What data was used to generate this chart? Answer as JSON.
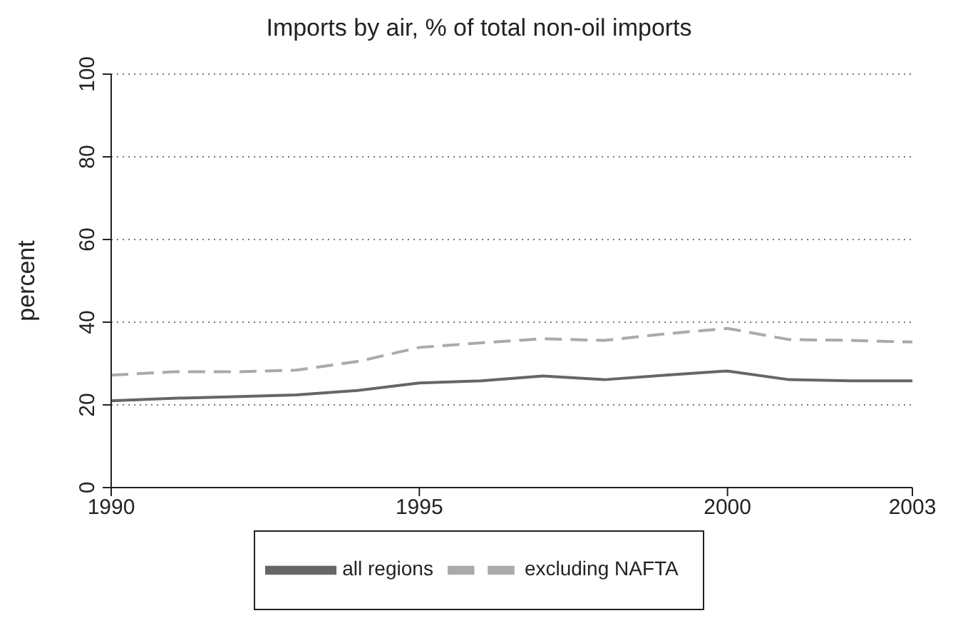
{
  "chart_data": {
    "type": "line",
    "title": "Imports by air, % of total non-oil imports",
    "ylabel": "percent",
    "x": [
      1990,
      1991,
      1992,
      1993,
      1994,
      1995,
      1996,
      1997,
      1998,
      1999,
      2000,
      2001,
      2002,
      2003
    ],
    "series": [
      {
        "name": "all regions",
        "color": "#666666",
        "line_style": "solid",
        "values": [
          21.0,
          21.6,
          22.0,
          22.4,
          23.5,
          25.3,
          25.8,
          27.0,
          26.1,
          27.2,
          28.2,
          26.1,
          25.8,
          25.8
        ]
      },
      {
        "name": "excluding NAFTA",
        "color": "#aaaaaa",
        "line_style": "dashed",
        "values": [
          27.2,
          28.0,
          28.0,
          28.4,
          30.5,
          33.9,
          35.0,
          36.0,
          35.6,
          37.2,
          38.5,
          35.8,
          35.6,
          35.2
        ]
      }
    ],
    "xlim": [
      1990,
      2003
    ],
    "xticks": [
      1990,
      1995,
      2000,
      2003
    ],
    "ylim": [
      0,
      100
    ],
    "yticks": [
      0,
      20,
      40,
      60,
      80,
      100
    ],
    "grid": "y",
    "legend": "bottom",
    "marker": "none"
  }
}
